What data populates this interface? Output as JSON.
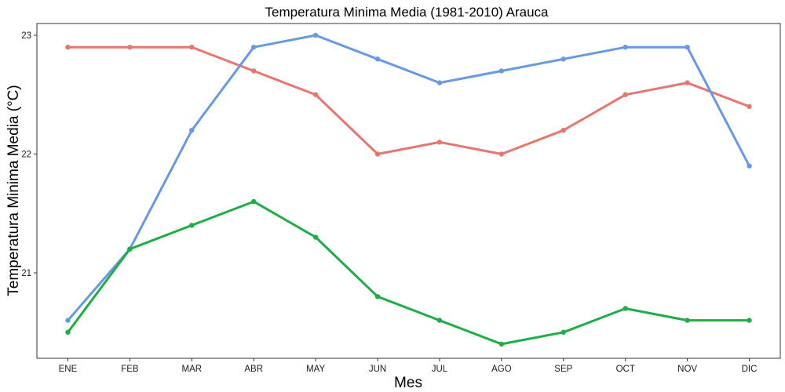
{
  "chart_data": {
    "type": "line",
    "title": "Temperatura Minima Media (1981-2010)  Arauca",
    "xlabel": "Mes",
    "ylabel": "Temperatura Minima Media  (°C)",
    "categories": [
      "ENE",
      "FEB",
      "MAR",
      "ABR",
      "MAY",
      "JUN",
      "JUL",
      "AGO",
      "SEP",
      "OCT",
      "NOV",
      "DIC"
    ],
    "yticks": [
      21,
      22,
      23
    ],
    "ylim": [
      20.4,
      23.1
    ],
    "grid": false,
    "legend": "none",
    "series": [
      {
        "color": "#E8766F",
        "values": [
          22.9,
          22.9,
          22.9,
          22.7,
          22.5,
          22.0,
          22.1,
          22.0,
          22.2,
          22.5,
          22.6,
          22.4
        ]
      },
      {
        "color": "#6699E6",
        "values": [
          20.6,
          21.2,
          22.2,
          22.9,
          23.0,
          22.8,
          22.6,
          22.7,
          22.8,
          22.9,
          22.9,
          21.9
        ]
      },
      {
        "color": "#1DAE45",
        "values": [
          20.5,
          21.2,
          21.4,
          21.6,
          21.3,
          20.8,
          20.6,
          20.4,
          20.5,
          20.7,
          20.6,
          20.6
        ]
      }
    ]
  }
}
